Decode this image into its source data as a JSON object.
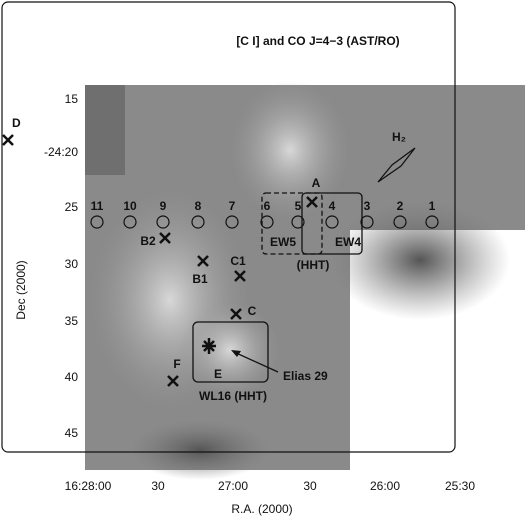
{
  "title": "[C I] and CO J=4−3   (AST/RO)",
  "x_axis": {
    "label": "R.A. (2000)",
    "ticks": [
      "16:28:00",
      "30",
      "27:00",
      "30",
      "26:00",
      "25:30"
    ]
  },
  "y_axis": {
    "label": "Dec (2000)",
    "ticks": [
      "15",
      "-24:20",
      "25",
      "30",
      "35",
      "40",
      "45"
    ]
  },
  "strip_positions": [
    "11",
    "10",
    "9",
    "8",
    "7",
    "6",
    "5",
    "4",
    "3",
    "2",
    "1"
  ],
  "sources": [
    "D",
    "A",
    "B2",
    "B1",
    "C1",
    "C",
    "F",
    "E"
  ],
  "annotations": {
    "h2": "H₂",
    "ew5": "EW5",
    "ew4": "EW4",
    "hht": "(HHT)",
    "wl16": "WL16 (HHT)",
    "elias": "Elias 29"
  }
}
